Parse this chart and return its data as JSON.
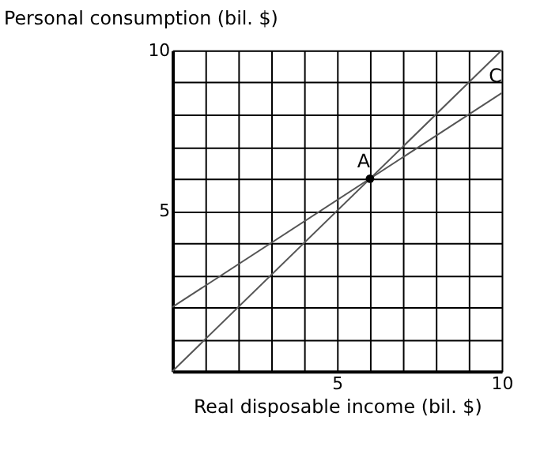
{
  "chart_data": {
    "type": "line",
    "xlabel": "Real disposable income (bil. $)",
    "ylabel": "Personal consumption (bil. $)",
    "xlim": [
      0,
      10
    ],
    "ylim": [
      0,
      10
    ],
    "xticks": [
      {
        "value": 0,
        "label": null
      },
      {
        "value": 1,
        "label": null
      },
      {
        "value": 2,
        "label": null
      },
      {
        "value": 3,
        "label": null
      },
      {
        "value": 4,
        "label": null
      },
      5,
      {
        "value": 6,
        "label": null
      },
      {
        "value": 7,
        "label": null
      },
      {
        "value": 8,
        "label": null
      },
      {
        "value": 9,
        "label": null
      },
      10
    ],
    "yticks": [
      {
        "value": 0,
        "label": null
      },
      {
        "value": 1,
        "label": null
      },
      {
        "value": 2,
        "label": null
      },
      {
        "value": 3,
        "label": null
      },
      {
        "value": 4,
        "label": null
      },
      5,
      {
        "value": 6,
        "label": null
      },
      {
        "value": 7,
        "label": null
      },
      {
        "value": 8,
        "label": null
      },
      {
        "value": 9,
        "label": null
      },
      10
    ],
    "grid": true,
    "line_style": "solid",
    "marker": "none",
    "series": [
      {
        "color": "#555555",
        "x": [
          0,
          10
        ],
        "values": [
          0,
          10
        ]
      },
      {
        "color": "#555555",
        "x": [
          0,
          10
        ],
        "values": [
          2,
          8.67
        ]
      },
      {
        "type": "scatter",
        "marker": "circle",
        "color": "#000000",
        "x": [
          6
        ],
        "values": [
          6
        ]
      }
    ],
    "annotations": [
      {
        "text": "A",
        "x": 6,
        "y": 6
      },
      {
        "text": "C",
        "x": 10,
        "y": 8.67
      }
    ]
  }
}
